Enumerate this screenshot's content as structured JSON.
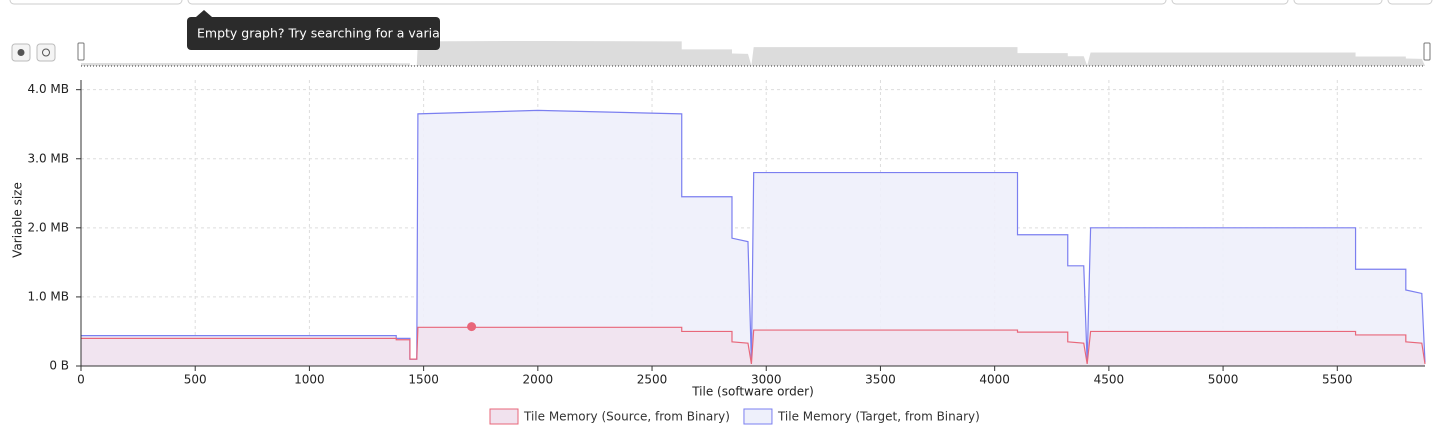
{
  "tooltip": "Empty graph? Try searching for a variable",
  "chart_data": {
    "type": "area",
    "y_label": "Variable size",
    "x_label": "Tile (software order)",
    "xlim": [
      0,
      5884
    ],
    "xticks": [
      0,
      500,
      1000,
      1500,
      2000,
      2500,
      3000,
      3500,
      4000,
      4500,
      5000,
      5500
    ],
    "ylim": [
      0,
      4.14
    ],
    "yticks": [
      {
        "value": 0,
        "label": "0 B"
      },
      {
        "value": 1,
        "label": "1.0 MB"
      },
      {
        "value": 2,
        "label": "2.0 MB"
      },
      {
        "value": 3,
        "label": "3.0 MB"
      },
      {
        "value": 4,
        "label": "4.0 MB"
      }
    ],
    "grid": true,
    "x": [
      0,
      1380,
      1380,
      1440,
      1440,
      1470,
      1475,
      2000,
      2630,
      2630,
      2850,
      2850,
      2920,
      2935,
      2945,
      3500,
      4100,
      4100,
      4320,
      4320,
      4390,
      4405,
      4420,
      5000,
      5580,
      5580,
      5800,
      5800,
      5870,
      5884
    ],
    "series": [
      {
        "name": "Tile Memory (Source, from Binary)",
        "color": "#e8677a",
        "fill": "#f1e2ee",
        "values": [
          0.4,
          0.4,
          0.38,
          0.38,
          0.1,
          0.1,
          0.56,
          0.56,
          0.56,
          0.5,
          0.5,
          0.35,
          0.33,
          0.03,
          0.52,
          0.52,
          0.52,
          0.49,
          0.49,
          0.35,
          0.33,
          0.03,
          0.5,
          0.5,
          0.5,
          0.45,
          0.45,
          0.35,
          0.33,
          0.03
        ]
      },
      {
        "name": "Tile Memory (Target, from Binary)",
        "color": "#7b7ff0",
        "fill": "#eef0fb",
        "values": [
          0.44,
          0.44,
          0.4,
          0.4,
          0.1,
          0.1,
          3.65,
          3.7,
          3.65,
          2.45,
          2.45,
          1.85,
          1.8,
          0.05,
          2.8,
          2.8,
          2.8,
          1.9,
          1.9,
          1.45,
          1.45,
          0.05,
          2.0,
          2.0,
          2.0,
          1.4,
          1.4,
          1.1,
          1.05,
          0.05
        ]
      }
    ],
    "highlight": {
      "x": 1710,
      "y": 0.57
    }
  }
}
